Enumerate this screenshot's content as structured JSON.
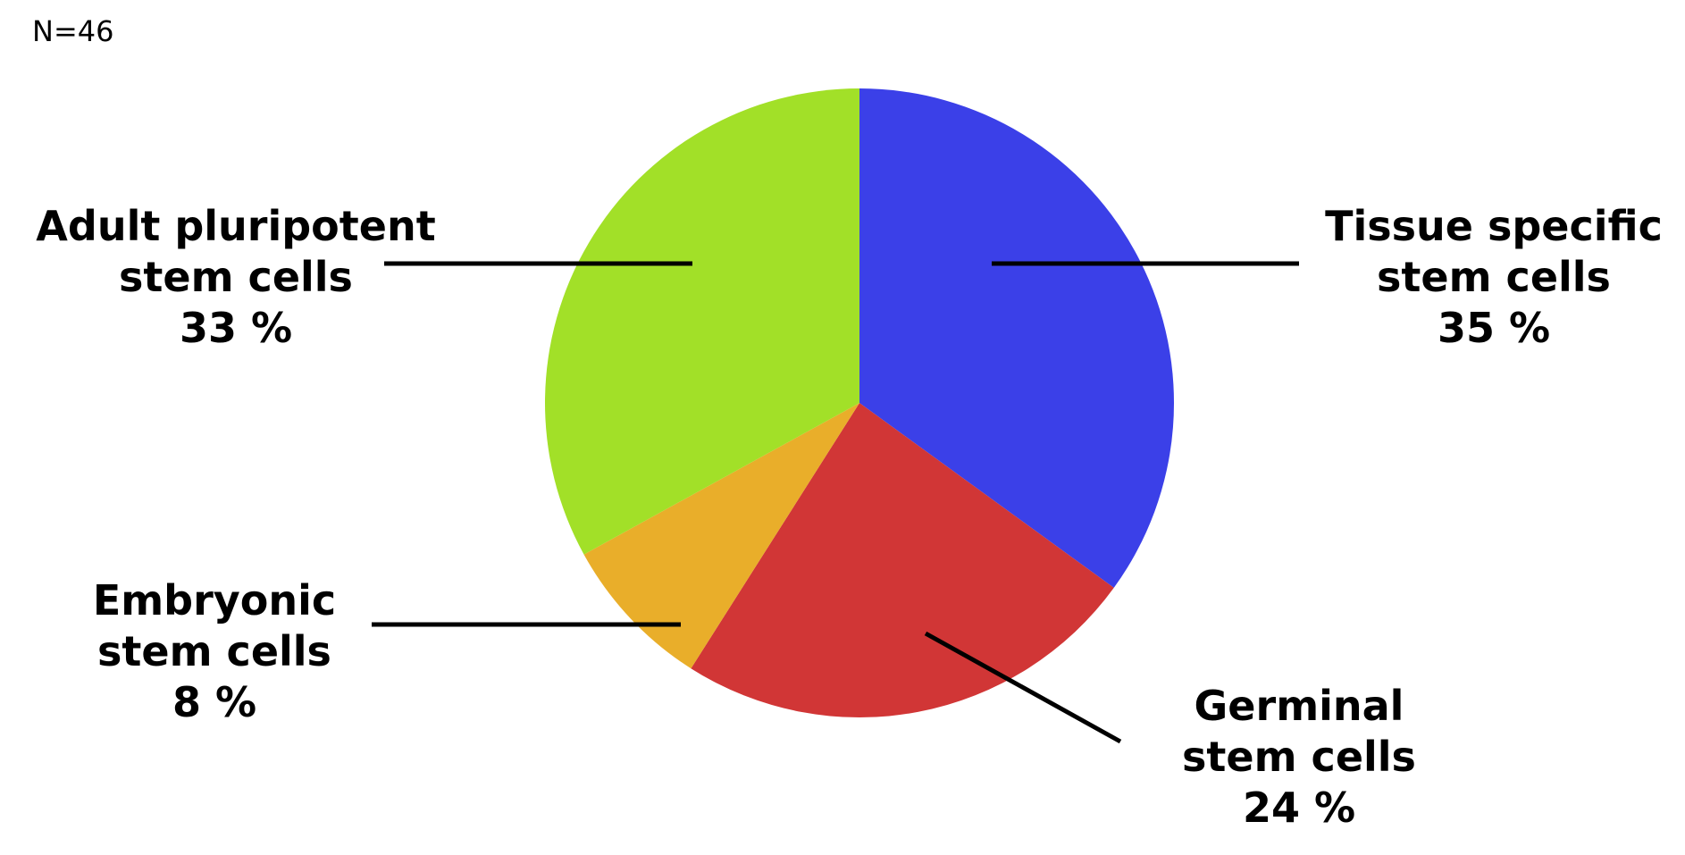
{
  "note": "N=46",
  "chart_data": {
    "type": "pie",
    "start": "12 o'clock",
    "direction": "clockwise",
    "slices": [
      {
        "label_line1": "Tissue specific",
        "label_line2": "stem cells",
        "percent_label": "35 %",
        "value": 35,
        "color": "#3b40e8"
      },
      {
        "label_line1": "Germinal",
        "label_line2": "stem cells",
        "percent_label": "24 %",
        "value": 24,
        "color": "#d13636"
      },
      {
        "label_line1": "Embryonic",
        "label_line2": "stem cells",
        "percent_label": "8 %",
        "value": 8,
        "color": "#e9ae2a"
      },
      {
        "label_line1": "Adult pluripotent",
        "label_line2": "stem cells",
        "percent_label": "33 %",
        "value": 33,
        "color": "#a2e028"
      }
    ]
  }
}
